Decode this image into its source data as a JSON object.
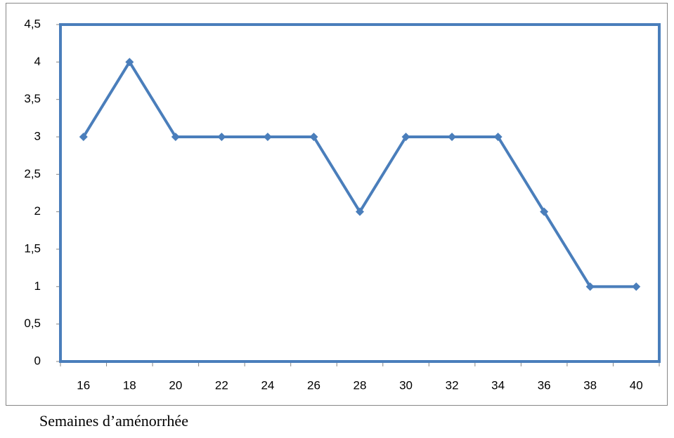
{
  "chart_data": {
    "type": "line",
    "x_label": "Semaines d’aménorrhée",
    "categories": [
      "16",
      "18",
      "20",
      "22",
      "24",
      "26",
      "28",
      "30",
      "32",
      "34",
      "36",
      "38",
      "40"
    ],
    "series": [
      {
        "color": "#4a7ebb",
        "values": [
          3,
          4,
          3,
          3,
          3,
          3,
          2,
          3,
          3,
          3,
          2,
          1,
          1
        ]
      }
    ],
    "ylim": [
      0,
      4.5
    ],
    "yticks": [
      0,
      {
        "value": 0.5,
        "label": "0,5"
      },
      1,
      {
        "value": 1.5,
        "label": "1,5"
      },
      2,
      {
        "value": 2.5,
        "label": "2,5"
      },
      3,
      {
        "value": 3.5,
        "label": "3,5"
      },
      4,
      {
        "value": 4.5,
        "label": "4,5"
      }
    ]
  }
}
